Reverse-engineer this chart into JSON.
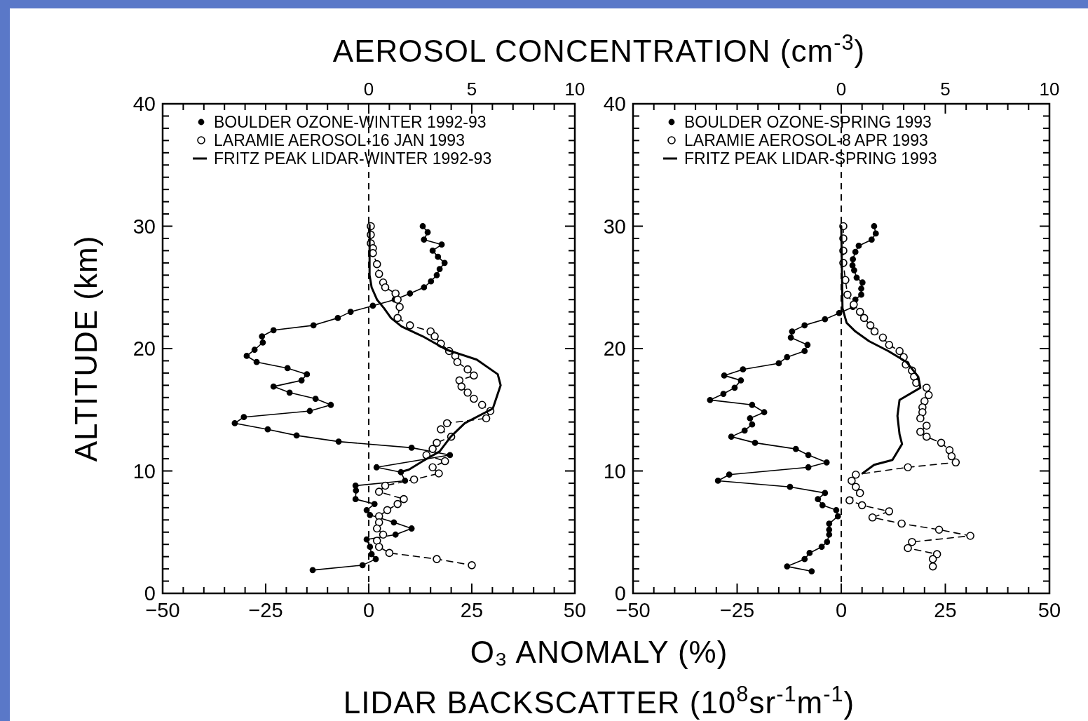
{
  "chart_data": [
    {
      "type": "line",
      "x2label": "AEROSOL CONCENTRATION (cm$^{-3}$)",
      "ylabel": "ALTITUDE (km)",
      "xlabel": "O₃ ANOMALY (%)\nLIDAR BACKSCATTER (10$^{8}$sr$^{-1}$m$^{-1}$)",
      "xlim": [
        -50,
        50
      ],
      "ylim": [
        0,
        40
      ],
      "x2lim": [
        -10,
        10
      ],
      "xticks": [
        -50,
        {
          "value": -45,
          "label": null
        },
        {
          "value": -40,
          "label": null
        },
        {
          "value": -35,
          "label": null
        },
        {
          "value": -30,
          "label": null
        },
        -25,
        {
          "value": -20,
          "label": null
        },
        {
          "value": -15,
          "label": null
        },
        {
          "value": -10,
          "label": null
        },
        {
          "value": -5,
          "label": null
        },
        0,
        {
          "value": 5,
          "label": null
        },
        {
          "value": 10,
          "label": null
        },
        {
          "value": 15,
          "label": null
        },
        {
          "value": 20,
          "label": null
        },
        25,
        {
          "value": 30,
          "label": null
        },
        {
          "value": 35,
          "label": null
        },
        {
          "value": 40,
          "label": null
        },
        {
          "value": 45,
          "label": null
        },
        50
      ],
      "x2ticks": [
        {
          "value": -10,
          "label": null
        },
        {
          "value": -9,
          "label": null
        },
        {
          "value": -8,
          "label": null
        },
        {
          "value": -7,
          "label": null
        },
        {
          "value": -6,
          "label": null
        },
        {
          "value": -5,
          "label": null
        },
        {
          "value": -4,
          "label": null
        },
        {
          "value": -3,
          "label": null
        },
        {
          "value": -2,
          "label": null
        },
        {
          "value": -1,
          "label": null
        },
        0,
        {
          "value": 1,
          "label": null
        },
        {
          "value": 2,
          "label": null
        },
        {
          "value": 3,
          "label": null
        },
        {
          "value": 4,
          "label": null
        },
        5,
        {
          "value": 6,
          "label": null
        },
        {
          "value": 7,
          "label": null
        },
        {
          "value": 8,
          "label": null
        },
        {
          "value": 9,
          "label": null
        },
        10
      ],
      "yticks": [
        0,
        {
          "value": 1,
          "label": null
        },
        {
          "value": 2,
          "label": null
        },
        {
          "value": 3,
          "label": null
        },
        {
          "value": 4,
          "label": null
        },
        {
          "value": 5,
          "label": null
        },
        {
          "value": 6,
          "label": null
        },
        {
          "value": 7,
          "label": null
        },
        {
          "value": 8,
          "label": null
        },
        {
          "value": 9,
          "label": null
        },
        10,
        {
          "value": 11,
          "label": null
        },
        {
          "value": 12,
          "label": null
        },
        {
          "value": 13,
          "label": null
        },
        {
          "value": 14,
          "label": null
        },
        {
          "value": 15,
          "label": null
        },
        {
          "value": 16,
          "label": null
        },
        {
          "value": 17,
          "label": null
        },
        {
          "value": 18,
          "label": null
        },
        {
          "value": 19,
          "label": null
        },
        20,
        {
          "value": 21,
          "label": null
        },
        {
          "value": 22,
          "label": null
        },
        {
          "value": 23,
          "label": null
        },
        {
          "value": 24,
          "label": null
        },
        {
          "value": 25,
          "label": null
        },
        {
          "value": 26,
          "label": null
        },
        {
          "value": 27,
          "label": null
        },
        {
          "value": 28,
          "label": null
        },
        {
          "value": 29,
          "label": null
        },
        30,
        {
          "value": 31,
          "label": null
        },
        {
          "value": 32,
          "label": null
        },
        {
          "value": 33,
          "label": null
        },
        {
          "value": 34,
          "label": null
        },
        {
          "value": 35,
          "label": null
        },
        {
          "value": 36,
          "label": null
        },
        {
          "value": 37,
          "label": null
        },
        {
          "value": 38,
          "label": null
        },
        {
          "value": 39,
          "label": null
        },
        40
      ],
      "legend": "top",
      "grid": false,
      "ref_lines": [
        {
          "axis": "x",
          "value": 0,
          "line_style": "dashed"
        }
      ],
      "series": [
        {
          "name": "BOULDER OZONE-WINTER 1992-93",
          "color": "#000000",
          "marker": "circle",
          "line_style": "solid",
          "x": [
            13.1,
            14.3,
            13.4,
            17.7,
            15.5,
            16.8,
            18.4,
            17.2,
            16.5,
            15.1,
            13.4,
            10.0,
            6.3,
            1.0,
            -4.4,
            -7.5,
            -13.4,
            -23.1,
            -25.9,
            -25.7,
            -27.7,
            -29.6,
            -27.2,
            -19.7,
            -15.0,
            -16.3,
            -23.1,
            -19.2,
            -12.9,
            -9.2,
            -14.3,
            -30.3,
            -32.5,
            -24.5,
            -17.5,
            -7.3,
            10.4,
            19.7,
            1.9,
            7.8,
            8.8,
            -3.2,
            -3.1,
            -3.2,
            1.4,
            -0.5,
            0.3,
            6.1,
            10.4,
            6.5,
            -0.5,
            0.3,
            0.7,
            1.7,
            -1.5,
            -13.6
          ],
          "values": [
            30.0,
            29.5,
            28.9,
            28.5,
            28.0,
            27.5,
            27.0,
            26.5,
            26.0,
            25.5,
            25.0,
            24.5,
            24.0,
            23.5,
            23.0,
            22.5,
            21.9,
            21.5,
            21.0,
            20.5,
            19.9,
            19.4,
            18.9,
            18.4,
            17.9,
            17.4,
            16.9,
            16.4,
            15.9,
            15.4,
            14.9,
            14.4,
            13.9,
            13.4,
            12.9,
            12.4,
            11.9,
            11.3,
            10.3,
            9.9,
            9.2,
            8.8,
            8.4,
            7.7,
            7.3,
            6.8,
            6.4,
            5.8,
            5.3,
            4.8,
            4.4,
            3.8,
            3.2,
            2.8,
            2.3,
            1.9
          ]
        },
        {
          "name": "LARAMIE AEROSOL-16 JAN 1993",
          "color": "#000000",
          "marker": "circle",
          "line_style": "dashed",
          "axis": "x2",
          "x": [
            0.1,
            0.1,
            0.1,
            0.2,
            0.2,
            0.4,
            0.5,
            0.7,
            0.8,
            1.3,
            1.4,
            1.5,
            1.4,
            2.0,
            3.0,
            3.2,
            3.5,
            3.9,
            4.2,
            4.3,
            4.8,
            5.1,
            4.4,
            4.5,
            4.8,
            5.1,
            5.5,
            5.9,
            5.7,
            3.8,
            3.5,
            4.0,
            3.3,
            3.1,
            2.8,
            3.7,
            3.1,
            3.4,
            2.2,
            0.8,
            0.5,
            1.7,
            1.4,
            0.9,
            0.5,
            0.5,
            0.4,
            0.7,
            0.4,
            0.5,
            1.0,
            3.3,
            5.0
          ],
          "values": [
            30.0,
            29.3,
            28.6,
            28.2,
            27.8,
            26.9,
            26.1,
            25.4,
            25.0,
            24.5,
            24.0,
            23.4,
            22.5,
            21.9,
            21.4,
            21.0,
            20.4,
            19.8,
            19.4,
            18.9,
            18.3,
            17.8,
            17.4,
            16.9,
            16.4,
            15.9,
            15.4,
            14.9,
            14.3,
            13.9,
            13.4,
            12.8,
            12.3,
            11.8,
            11.3,
            10.8,
            10.3,
            9.8,
            9.3,
            8.8,
            8.3,
            7.7,
            7.3,
            6.8,
            6.3,
            5.8,
            5.3,
            4.8,
            4.3,
            3.8,
            3.3,
            2.8,
            2.3
          ]
        },
        {
          "name": "FRITZ PEAK LIDAR-WINTER 1992-93",
          "color": "#000000",
          "marker": "none",
          "line_style": "solid",
          "x": [
            0.2,
            0.2,
            0.7,
            2.0,
            3.7,
            5.4,
            8.0,
            13.1,
            18.9,
            26.2,
            31.3,
            32.0,
            30.1,
            23.3,
            19.9,
            17.2,
            13.1,
            9.7,
            7.5
          ],
          "values": [
            30.1,
            26.0,
            25.0,
            24.0,
            23.3,
            22.5,
            21.8,
            21.0,
            19.9,
            19.1,
            17.9,
            17.0,
            15.1,
            13.9,
            12.8,
            11.6,
            10.8,
            10.1,
            9.9
          ]
        }
      ]
    },
    {
      "type": "line",
      "xlim": [
        -50,
        50
      ],
      "ylim": [
        0,
        40
      ],
      "x2lim": [
        -10,
        10
      ],
      "xticks": [
        -50,
        {
          "value": -45,
          "label": null
        },
        {
          "value": -40,
          "label": null
        },
        {
          "value": -35,
          "label": null
        },
        {
          "value": -30,
          "label": null
        },
        -25,
        {
          "value": -20,
          "label": null
        },
        {
          "value": -15,
          "label": null
        },
        {
          "value": -10,
          "label": null
        },
        {
          "value": -5,
          "label": null
        },
        0,
        {
          "value": 5,
          "label": null
        },
        {
          "value": 10,
          "label": null
        },
        {
          "value": 15,
          "label": null
        },
        {
          "value": 20,
          "label": null
        },
        25,
        {
          "value": 30,
          "label": null
        },
        {
          "value": 35,
          "label": null
        },
        {
          "value": 40,
          "label": null
        },
        {
          "value": 45,
          "label": null
        },
        50
      ],
      "x2ticks": [
        {
          "value": -10,
          "label": null
        },
        {
          "value": -9,
          "label": null
        },
        {
          "value": -8,
          "label": null
        },
        {
          "value": -7,
          "label": null
        },
        {
          "value": -6,
          "label": null
        },
        {
          "value": -5,
          "label": null
        },
        {
          "value": -4,
          "label": null
        },
        {
          "value": -3,
          "label": null
        },
        {
          "value": -2,
          "label": null
        },
        {
          "value": -1,
          "label": null
        },
        0,
        {
          "value": 1,
          "label": null
        },
        {
          "value": 2,
          "label": null
        },
        {
          "value": 3,
          "label": null
        },
        {
          "value": 4,
          "label": null
        },
        5,
        {
          "value": 6,
          "label": null
        },
        {
          "value": 7,
          "label": null
        },
        {
          "value": 8,
          "label": null
        },
        {
          "value": 9,
          "label": null
        },
        10
      ],
      "yticks": [
        0,
        {
          "value": 1,
          "label": null
        },
        {
          "value": 2,
          "label": null
        },
        {
          "value": 3,
          "label": null
        },
        {
          "value": 4,
          "label": null
        },
        {
          "value": 5,
          "label": null
        },
        {
          "value": 6,
          "label": null
        },
        {
          "value": 7,
          "label": null
        },
        {
          "value": 8,
          "label": null
        },
        {
          "value": 9,
          "label": null
        },
        10,
        {
          "value": 11,
          "label": null
        },
        {
          "value": 12,
          "label": null
        },
        {
          "value": 13,
          "label": null
        },
        {
          "value": 14,
          "label": null
        },
        {
          "value": 15,
          "label": null
        },
        {
          "value": 16,
          "label": null
        },
        {
          "value": 17,
          "label": null
        },
        {
          "value": 18,
          "label": null
        },
        {
          "value": 19,
          "label": null
        },
        20,
        {
          "value": 21,
          "label": null
        },
        {
          "value": 22,
          "label": null
        },
        {
          "value": 23,
          "label": null
        },
        {
          "value": 24,
          "label": null
        },
        {
          "value": 25,
          "label": null
        },
        {
          "value": 26,
          "label": null
        },
        {
          "value": 27,
          "label": null
        },
        {
          "value": 28,
          "label": null
        },
        {
          "value": 29,
          "label": null
        },
        30,
        {
          "value": 31,
          "label": null
        },
        {
          "value": 32,
          "label": null
        },
        {
          "value": 33,
          "label": null
        },
        {
          "value": 34,
          "label": null
        },
        {
          "value": 35,
          "label": null
        },
        {
          "value": 36,
          "label": null
        },
        {
          "value": 37,
          "label": null
        },
        {
          "value": 38,
          "label": null
        },
        {
          "value": 39,
          "label": null
        },
        40
      ],
      "legend": "top",
      "grid": false,
      "ref_lines": [
        {
          "axis": "x",
          "value": 0,
          "line_style": "dashed"
        }
      ],
      "series": [
        {
          "name": "BOULDER OZONE-SPRING 1993",
          "color": "#000000",
          "marker": "circle",
          "line_style": "solid",
          "x": [
            7.9,
            8.3,
            7.3,
            4.2,
            3.4,
            2.8,
            2.7,
            3.1,
            3.7,
            5.1,
            4.8,
            4.8,
            3.4,
            2.8,
            -0.5,
            -3.9,
            -8.8,
            -11.8,
            -12.1,
            -8.1,
            -8.8,
            -13.0,
            -15.0,
            -23.6,
            -28.1,
            -24.1,
            -25.6,
            -28.3,
            -31.5,
            -21.4,
            -18.5,
            -21.9,
            -21.4,
            -23.2,
            -26.4,
            -20.7,
            -10.9,
            -7.9,
            -3.5,
            -7.9,
            -26.9,
            -29.6,
            -12.3,
            -3.9,
            -5.6,
            -4.5,
            -1.2,
            -0.8,
            -2.9,
            -2.9,
            -2.9,
            -3.4,
            -4.7,
            -7.6,
            -8.8,
            -13.0,
            -7.1
          ],
          "values": [
            30.0,
            29.4,
            28.9,
            28.4,
            27.9,
            27.3,
            26.8,
            26.4,
            25.8,
            25.4,
            24.9,
            24.4,
            24.0,
            23.4,
            22.9,
            22.4,
            21.9,
            21.4,
            20.9,
            20.3,
            19.8,
            19.3,
            18.8,
            18.3,
            17.8,
            17.4,
            16.8,
            16.3,
            15.8,
            15.4,
            14.8,
            14.3,
            13.8,
            13.3,
            12.8,
            12.3,
            11.8,
            11.3,
            10.7,
            10.3,
            9.7,
            9.2,
            8.7,
            8.2,
            7.7,
            7.2,
            6.8,
            6.3,
            5.7,
            5.2,
            4.8,
            4.2,
            3.8,
            3.3,
            2.8,
            2.2,
            1.8
          ]
        },
        {
          "name": "LARAMIE AEROSOL-8 APR 1993",
          "color": "#000000",
          "marker": "circle",
          "line_style": "dashed",
          "axis": "x2",
          "x": [
            0.1,
            0.1,
            0.1,
            0.1,
            0.2,
            0.3,
            0.6,
            0.9,
            1.1,
            1.4,
            1.6,
            2.0,
            2.3,
            2.8,
            3.0,
            3.1,
            3.4,
            3.5,
            3.6,
            4.1,
            4.2,
            4.0,
            3.9,
            3.9,
            3.8,
            4.1,
            3.8,
            4.1,
            4.8,
            5.2,
            5.3,
            5.5,
            3.2,
            0.7,
            0.5,
            0.7,
            0.9,
            0.4,
            1.0,
            2.3,
            1.5,
            2.9,
            4.7,
            6.2,
            3.4,
            3.2,
            4.6,
            4.4,
            4.4
          ],
          "values": [
            30.0,
            29.0,
            28.0,
            27.0,
            25.6,
            24.4,
            23.6,
            23.0,
            22.5,
            21.9,
            21.4,
            20.9,
            20.3,
            19.8,
            19.3,
            18.7,
            18.2,
            17.7,
            17.2,
            16.8,
            16.2,
            15.7,
            15.2,
            14.8,
            14.3,
            13.7,
            13.2,
            12.8,
            12.3,
            11.7,
            11.2,
            10.7,
            10.3,
            9.7,
            9.2,
            8.7,
            8.2,
            7.6,
            7.2,
            6.7,
            6.2,
            5.7,
            5.2,
            4.7,
            4.2,
            3.7,
            3.2,
            2.8,
            2.2
          ]
        },
        {
          "name": "FRITZ PEAK LIDAR-SPRING 1993",
          "color": "#000000",
          "marker": "none",
          "line_style": "solid",
          "x": [
            0.0,
            0.3,
            1.3,
            3.4,
            6.7,
            11.3,
            15.7,
            18.5,
            19.0,
            14.0,
            13.5,
            14.0,
            14.6,
            12.3,
            7.9,
            5.1
          ],
          "values": [
            30.0,
            23.3,
            22.1,
            21.4,
            20.6,
            19.8,
            18.9,
            17.7,
            16.8,
            15.8,
            14.5,
            13.0,
            12.2,
            10.9,
            10.5,
            9.8
          ]
        }
      ]
    }
  ]
}
